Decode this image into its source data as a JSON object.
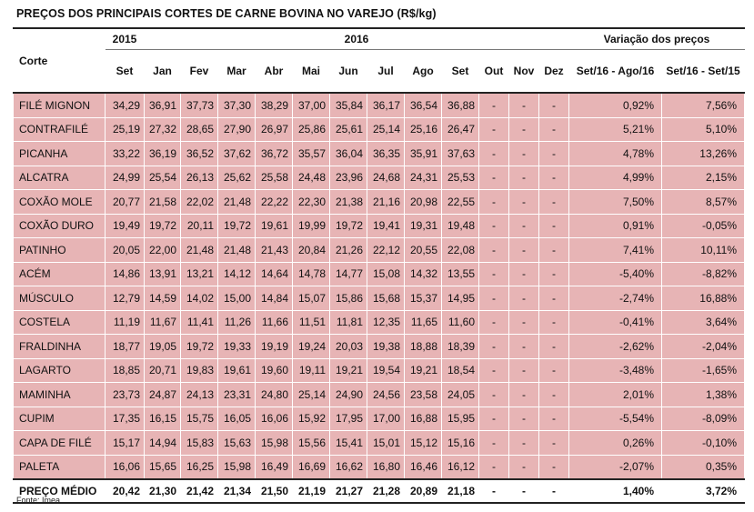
{
  "title": "PREÇOS DOS PRINCIPAIS CORTES DE CARNE BOVINA NO VAREJO (R$/kg)",
  "header": {
    "corte": "Corte",
    "year_2015": "2015",
    "year_2016": "2016",
    "variation": "Variação dos preços",
    "months_2015": [
      "Set"
    ],
    "months_2016": [
      "Jan",
      "Fev",
      "Mar",
      "Abr",
      "Mai",
      "Jun",
      "Jul",
      "Ago",
      "Set",
      "Out",
      "Nov",
      "Dez"
    ],
    "var_cols": [
      "Set/16 - Ago/16",
      "Set/16 - Set/15"
    ]
  },
  "rows": [
    {
      "name": "FILÉ MIGNON",
      "values": [
        "34,29",
        "36,91",
        "37,73",
        "37,30",
        "38,29",
        "37,00",
        "35,84",
        "36,17",
        "36,54",
        "36,88",
        "-",
        "-",
        "-"
      ],
      "var": [
        "0,92%",
        "7,56%"
      ]
    },
    {
      "name": "CONTRAFILÉ",
      "values": [
        "25,19",
        "27,32",
        "28,65",
        "27,90",
        "26,97",
        "25,86",
        "25,61",
        "25,14",
        "25,16",
        "26,47",
        "-",
        "-",
        "-"
      ],
      "var": [
        "5,21%",
        "5,10%"
      ]
    },
    {
      "name": "PICANHA",
      "values": [
        "33,22",
        "36,19",
        "36,52",
        "37,62",
        "36,72",
        "35,57",
        "36,04",
        "36,35",
        "35,91",
        "37,63",
        "-",
        "-",
        "-"
      ],
      "var": [
        "4,78%",
        "13,26%"
      ]
    },
    {
      "name": "ALCATRA",
      "values": [
        "24,99",
        "25,54",
        "26,13",
        "25,62",
        "25,58",
        "24,48",
        "23,96",
        "24,68",
        "24,31",
        "25,53",
        "-",
        "-",
        "-"
      ],
      "var": [
        "4,99%",
        "2,15%"
      ]
    },
    {
      "name": "COXÃO MOLE",
      "values": [
        "20,77",
        "21,58",
        "22,02",
        "21,48",
        "22,22",
        "22,30",
        "21,38",
        "21,16",
        "20,98",
        "22,55",
        "-",
        "-",
        "-"
      ],
      "var": [
        "7,50%",
        "8,57%"
      ]
    },
    {
      "name": "COXÃO DURO",
      "values": [
        "19,49",
        "19,72",
        "20,11",
        "19,72",
        "19,61",
        "19,99",
        "19,72",
        "19,41",
        "19,31",
        "19,48",
        "-",
        "-",
        "-"
      ],
      "var": [
        "0,91%",
        "-0,05%"
      ]
    },
    {
      "name": "PATINHO",
      "values": [
        "20,05",
        "22,00",
        "21,48",
        "21,48",
        "21,43",
        "20,84",
        "21,26",
        "22,12",
        "20,55",
        "22,08",
        "-",
        "-",
        "-"
      ],
      "var": [
        "7,41%",
        "10,11%"
      ]
    },
    {
      "name": "ACÉM",
      "values": [
        "14,86",
        "13,91",
        "13,21",
        "14,12",
        "14,64",
        "14,78",
        "14,77",
        "15,08",
        "14,32",
        "13,55",
        "-",
        "-",
        "-"
      ],
      "var": [
        "-5,40%",
        "-8,82%"
      ]
    },
    {
      "name": "MÚSCULO",
      "values": [
        "12,79",
        "14,59",
        "14,02",
        "15,00",
        "14,84",
        "15,07",
        "15,86",
        "15,68",
        "15,37",
        "14,95",
        "-",
        "-",
        "-"
      ],
      "var": [
        "-2,74%",
        "16,88%"
      ]
    },
    {
      "name": "COSTELA",
      "values": [
        "11,19",
        "11,67",
        "11,41",
        "11,26",
        "11,66",
        "11,51",
        "11,81",
        "12,35",
        "11,65",
        "11,60",
        "-",
        "-",
        "-"
      ],
      "var": [
        "-0,41%",
        "3,64%"
      ]
    },
    {
      "name": "FRALDINHA",
      "values": [
        "18,77",
        "19,05",
        "19,72",
        "19,33",
        "19,19",
        "19,24",
        "20,03",
        "19,38",
        "18,88",
        "18,39",
        "-",
        "-",
        "-"
      ],
      "var": [
        "-2,62%",
        "-2,04%"
      ]
    },
    {
      "name": "LAGARTO",
      "values": [
        "18,85",
        "20,71",
        "19,83",
        "19,61",
        "19,60",
        "19,11",
        "19,21",
        "19,54",
        "19,21",
        "18,54",
        "-",
        "-",
        "-"
      ],
      "var": [
        "-3,48%",
        "-1,65%"
      ]
    },
    {
      "name": "MAMINHA",
      "values": [
        "23,73",
        "24,87",
        "24,13",
        "23,31",
        "24,80",
        "25,14",
        "24,90",
        "24,56",
        "23,58",
        "24,05",
        "-",
        "-",
        "-"
      ],
      "var": [
        "2,01%",
        "1,38%"
      ]
    },
    {
      "name": "CUPIM",
      "values": [
        "17,35",
        "16,15",
        "15,75",
        "16,05",
        "16,06",
        "15,92",
        "17,95",
        "17,00",
        "16,88",
        "15,95",
        "-",
        "-",
        "-"
      ],
      "var": [
        "-5,54%",
        "-8,09%"
      ]
    },
    {
      "name": "CAPA DE FILÉ",
      "values": [
        "15,17",
        "14,94",
        "15,83",
        "15,63",
        "15,98",
        "15,56",
        "15,41",
        "15,01",
        "15,12",
        "15,16",
        "-",
        "-",
        "-"
      ],
      "var": [
        "0,26%",
        "-0,10%"
      ]
    },
    {
      "name": "PALETA",
      "values": [
        "16,06",
        "15,65",
        "16,25",
        "15,98",
        "16,49",
        "16,69",
        "16,62",
        "16,80",
        "16,46",
        "16,12",
        "-",
        "-",
        "-"
      ],
      "var": [
        "-2,07%",
        "0,35%"
      ]
    }
  ],
  "footer": {
    "name": "PREÇO MÉDIO",
    "values": [
      "20,42",
      "21,30",
      "21,42",
      "21,34",
      "21,50",
      "21,19",
      "21,27",
      "21,28",
      "20,89",
      "21,18",
      "-",
      "-",
      "-"
    ],
    "var": [
      "1,40%",
      "3,72%"
    ]
  },
  "source": "Fonte: Imea"
}
